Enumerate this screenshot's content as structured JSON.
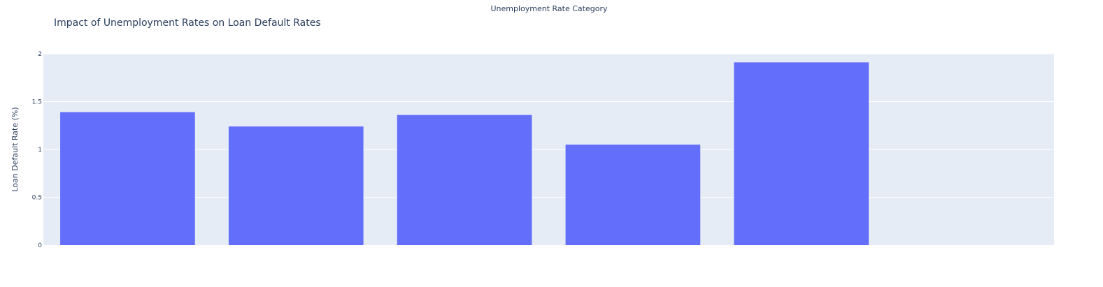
{
  "chart_data": {
    "type": "bar",
    "title": "Impact of Unemployment Rates on Loan Default Rates",
    "xlabel": "Unemployment Rate Category",
    "ylabel": "Loan Default Rate (%)",
    "categories": [
      "",
      "",
      "",
      "",
      "",
      ""
    ],
    "values": [
      1.39,
      1.24,
      1.36,
      1.05,
      1.91,
      null
    ],
    "ylim": [
      0,
      2
    ],
    "yticks": [
      0,
      0.5,
      1,
      1.5,
      2
    ],
    "ytick_labels": [
      "0",
      "0.5",
      "1",
      "1.5",
      "2"
    ],
    "grid": true,
    "legend": "none",
    "colors": {
      "bar": "#636efa",
      "plot_background": "#e5ecf6",
      "gridline": "#ffffff",
      "text": "#2a3f5f"
    }
  }
}
